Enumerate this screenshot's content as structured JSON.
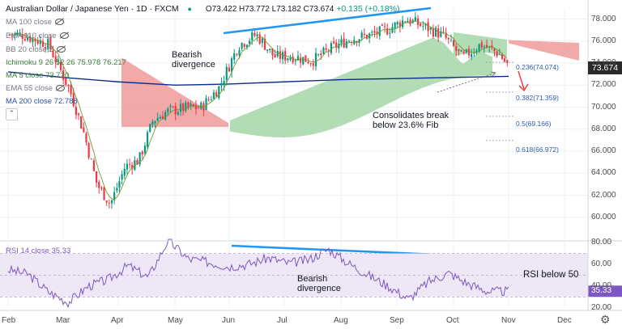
{
  "header": {
    "symbol": "Australian Dollar / Japanese Yen · 1D · FXCM",
    "ohlc": "O73.422 H73.772 L73.182 C73.674",
    "change": "+0.135 (+0.18%)"
  },
  "legend": [
    {
      "id": "ma100",
      "text": "MA 100 close"
    },
    {
      "id": "ema110",
      "text": "EMA 110 close"
    },
    {
      "id": "bb20",
      "text": "BB 20 close 2"
    },
    {
      "id": "ichimoku",
      "text": "Ichimoku 9 26 52 26  75.978  76.217"
    },
    {
      "id": "ma5",
      "text": "MA 5 close  73.720"
    },
    {
      "id": "ema55",
      "text": "EMA 55 close"
    },
    {
      "id": "ma200",
      "text": "MA 200 close  72.788"
    }
  ],
  "annotations": {
    "bearish_top_1": "Bearish",
    "bearish_top_2": "divergence",
    "consolidates_1": "Consolidates break",
    "consolidates_2": "below 23.6% Fib",
    "bearish_rsi_1": "Bearish",
    "bearish_rsi_2": "divergence",
    "rsi_below": "RSI below 50"
  },
  "fib_labels": [
    {
      "text": "0.236(74.074)",
      "value": 74.074
    },
    {
      "text": "0.382(71.359)",
      "value": 71.359
    },
    {
      "text": "0.5(69.166)",
      "value": 69.166
    },
    {
      "text": "0.618(66.972)",
      "value": 66.972
    }
  ],
  "last_price": "73.674",
  "rsi_label": "RSI 14 close  35.33",
  "colors": {
    "up": "#089981",
    "down": "#f23645",
    "cloud_bull": "#a5d6a7",
    "cloud_bear": "#ef9a9a",
    "ma200": "#0d2d8a",
    "ma5": "#6f9a2f",
    "trend": "#2196f3",
    "rsi": "#7e57c2",
    "rsi_band": "#ede7f6",
    "arrow": "#e53935"
  },
  "chart_data": [
    {
      "type": "candlestick",
      "title": "Australian Dollar / Japanese Yen",
      "ylim": [
        58,
        79
      ],
      "y_ticks": [
        60,
        62,
        64,
        66,
        68,
        70,
        72,
        74,
        76,
        78
      ],
      "x_tick_labels": [
        "Feb",
        "Mar",
        "Apr",
        "May",
        "Jun",
        "Jul",
        "Aug",
        "Sep",
        "Oct",
        "Nov",
        "Dec"
      ],
      "close_path": [
        [
          "Feb",
          76.6
        ],
        [
          "Feb",
          75.7
        ],
        [
          "Mar",
          71.5
        ],
        [
          "Mar",
          67.8
        ],
        [
          "Mar",
          63.0
        ],
        [
          "Mar",
          61.2
        ],
        [
          "Apr",
          64.6
        ],
        [
          "Apr",
          65.2
        ],
        [
          "Apr",
          68.8
        ],
        [
          "Apr",
          69.6
        ],
        [
          "May",
          69.9
        ],
        [
          "May",
          70.0
        ],
        [
          "May",
          71.8
        ],
        [
          "Jun",
          75.6
        ],
        [
          "Jun",
          76.6
        ],
        [
          "Jun",
          74.6
        ],
        [
          "Jul",
          74.6
        ],
        [
          "Jul",
          74.2
        ],
        [
          "Jul",
          75.3
        ],
        [
          "Aug",
          76.2
        ],
        [
          "Aug",
          76.5
        ],
        [
          "Aug",
          77.0
        ],
        [
          "Sep",
          78.0
        ],
        [
          "Sep",
          77.3
        ],
        [
          "Sep",
          76.5
        ],
        [
          "Oct",
          74.5
        ],
        [
          "Oct",
          75.7
        ],
        [
          "Oct",
          74.9
        ],
        [
          "Nov",
          73.7
        ]
      ],
      "ma200_path": [
        [
          "Feb",
          73.2
        ],
        [
          "Mar",
          72.7
        ],
        [
          "Apr",
          72.3
        ],
        [
          "May",
          72.0
        ],
        [
          "Jun",
          72.1
        ],
        [
          "Jul",
          72.3
        ],
        [
          "Aug",
          72.5
        ],
        [
          "Sep",
          72.6
        ],
        [
          "Oct",
          72.7
        ],
        [
          "Nov",
          72.8
        ]
      ],
      "fib_levels": {
        "0.236": 74.074,
        "0.382": 71.359,
        "0.5": 69.166,
        "0.618": 66.972
      },
      "last": 73.674
    },
    {
      "type": "line",
      "title": "RSI 14 close",
      "ylim": [
        20,
        80
      ],
      "y_ticks": [
        20,
        40,
        60,
        80
      ],
      "band": [
        30,
        70
      ],
      "series": [
        {
          "name": "RSI 14 close",
          "values": [
            55,
            51,
            35,
            25,
            40,
            46,
            59,
            48,
            82,
            65,
            62,
            58,
            60,
            66,
            61,
            64,
            74,
            61,
            50,
            40,
            28,
            44,
            52,
            42,
            35,
            35.33
          ]
        }
      ],
      "last": 35.33
    }
  ]
}
